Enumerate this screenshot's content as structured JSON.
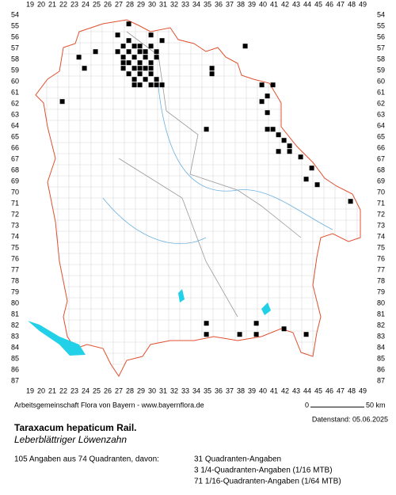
{
  "header": {
    "credit": "Arbeitsgemeinschaft Flora von Bayern - www.bayernflora.de",
    "scale_start": "0",
    "scale_end": "50 km",
    "date": "Datenstand: 05.06.2025"
  },
  "species": {
    "name": "Taraxacum hepaticum Rail.",
    "common_name": "Leberblättriger Löwenzahn"
  },
  "summary": {
    "total": "105 Angaben aus 74 Quadranten, davon:",
    "lines": [
      "31 Quadranten-Angaben",
      "3 1/4-Quadranten-Angaben (1/16 MTB)",
      "71 1/16-Quadranten-Angaben (1/64 MTB)"
    ]
  },
  "map": {
    "columns": [
      19,
      20,
      21,
      22,
      23,
      24,
      25,
      26,
      27,
      28,
      29,
      30,
      31,
      32,
      33,
      34,
      35,
      36,
      37,
      38,
      39,
      40,
      41,
      42,
      43,
      44,
      45,
      46,
      47,
      48,
      49
    ],
    "rows": [
      54,
      55,
      56,
      57,
      58,
      59,
      60,
      61,
      62,
      63,
      64,
      65,
      66,
      67,
      68,
      69,
      70,
      71,
      72,
      73,
      74,
      75,
      76,
      77,
      78,
      79,
      80,
      81,
      82,
      83,
      84,
      85,
      86,
      87
    ],
    "records": [
      [
        27.9,
        54.8
      ],
      [
        26.9,
        55.8
      ],
      [
        29.9,
        55.8
      ],
      [
        27.9,
        56.3
      ],
      [
        30.9,
        56.3
      ],
      [
        27.4,
        56.8
      ],
      [
        28.4,
        56.8
      ],
      [
        28.9,
        56.8
      ],
      [
        29.9,
        56.8
      ],
      [
        38.4,
        56.8
      ],
      [
        24.9,
        57.3
      ],
      [
        26.9,
        57.3
      ],
      [
        27.9,
        57.3
      ],
      [
        28.9,
        57.3
      ],
      [
        29.4,
        57.3
      ],
      [
        30.4,
        57.3
      ],
      [
        23.4,
        57.8
      ],
      [
        27.4,
        57.8
      ],
      [
        28.4,
        57.8
      ],
      [
        29.4,
        57.8
      ],
      [
        30.4,
        57.8
      ],
      [
        27.4,
        58.3
      ],
      [
        27.9,
        58.3
      ],
      [
        28.9,
        58.3
      ],
      [
        29.9,
        58.3
      ],
      [
        23.9,
        58.8
      ],
      [
        27.4,
        58.8
      ],
      [
        28.4,
        58.8
      ],
      [
        28.9,
        58.8
      ],
      [
        29.4,
        58.8
      ],
      [
        29.9,
        58.8
      ],
      [
        35.4,
        58.8
      ],
      [
        27.9,
        59.3
      ],
      [
        28.9,
        59.3
      ],
      [
        29.9,
        59.3
      ],
      [
        35.4,
        59.3
      ],
      [
        28.4,
        59.8
      ],
      [
        29.4,
        59.8
      ],
      [
        30.4,
        59.8
      ],
      [
        28.4,
        60.3
      ],
      [
        28.9,
        60.3
      ],
      [
        29.9,
        60.3
      ],
      [
        30.4,
        60.3
      ],
      [
        30.9,
        60.3
      ],
      [
        39.9,
        60.3
      ],
      [
        40.9,
        60.3
      ],
      [
        40.4,
        61.3
      ],
      [
        21.9,
        61.8
      ],
      [
        39.9,
        61.8
      ],
      [
        40.4,
        62.8
      ],
      [
        34.9,
        64.3
      ],
      [
        40.4,
        64.3
      ],
      [
        40.9,
        64.3
      ],
      [
        41.4,
        64.8
      ],
      [
        41.9,
        65.3
      ],
      [
        42.4,
        65.8
      ],
      [
        41.4,
        66.3
      ],
      [
        42.4,
        66.3
      ],
      [
        43.4,
        66.8
      ],
      [
        44.4,
        67.8
      ],
      [
        43.9,
        68.8
      ],
      [
        44.9,
        69.3
      ],
      [
        47.9,
        70.8
      ],
      [
        34.9,
        81.8
      ],
      [
        39.4,
        81.8
      ],
      [
        41.9,
        82.3
      ],
      [
        34.9,
        82.8
      ],
      [
        37.9,
        82.8
      ],
      [
        39.4,
        82.8
      ],
      [
        43.9,
        82.8
      ]
    ]
  }
}
